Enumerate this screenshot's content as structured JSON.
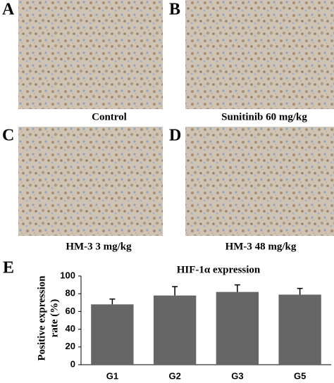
{
  "panels": [
    {
      "letter": "A",
      "caption": "Control"
    },
    {
      "letter": "B",
      "caption": "Sunitinib 60 mg/kg"
    },
    {
      "letter": "C",
      "caption": "HM-3 3 mg/kg"
    },
    {
      "letter": "D",
      "caption": "HM-3 48 mg/kg"
    }
  ],
  "chart_letter": "E",
  "chart_data": {
    "type": "bar",
    "title": "HIF-1α expression",
    "ylabel": [
      "Positive expression",
      "rate (%)"
    ],
    "categories": [
      "G1",
      "G2",
      "G3",
      "G5"
    ],
    "values": [
      68,
      78,
      82,
      79
    ],
    "errors": [
      6,
      10,
      8,
      7
    ],
    "color": "#666666",
    "ylim": [
      0,
      100
    ],
    "yticks": [
      0,
      20,
      40,
      60,
      80,
      100
    ],
    "grid": false
  }
}
